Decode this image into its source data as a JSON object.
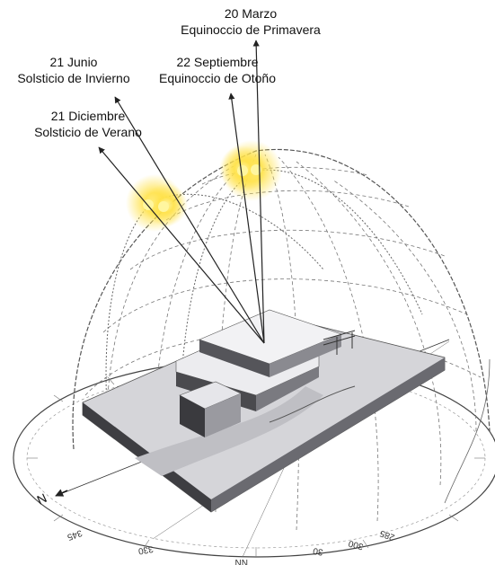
{
  "labels": {
    "march": {
      "date": "20 Marzo",
      "event": "Equinoccio de Primavera"
    },
    "june": {
      "date": "21 Junio",
      "event": "Solsticio de Invierno"
    },
    "september": {
      "date": "22 Septiembre",
      "event": "Equinoccio de Otoño"
    },
    "december": {
      "date": "21 Diciembre",
      "event": "Solsticio de Verano"
    }
  },
  "compass": {
    "north": "N",
    "ticks": [
      "345",
      "330",
      "NN",
      "30",
      "285",
      "300"
    ]
  },
  "colors": {
    "sun": "#ffe24a",
    "dome": "#8a8a8a",
    "building": "#d9d9dc",
    "building_dark": "#4a4a4e"
  }
}
